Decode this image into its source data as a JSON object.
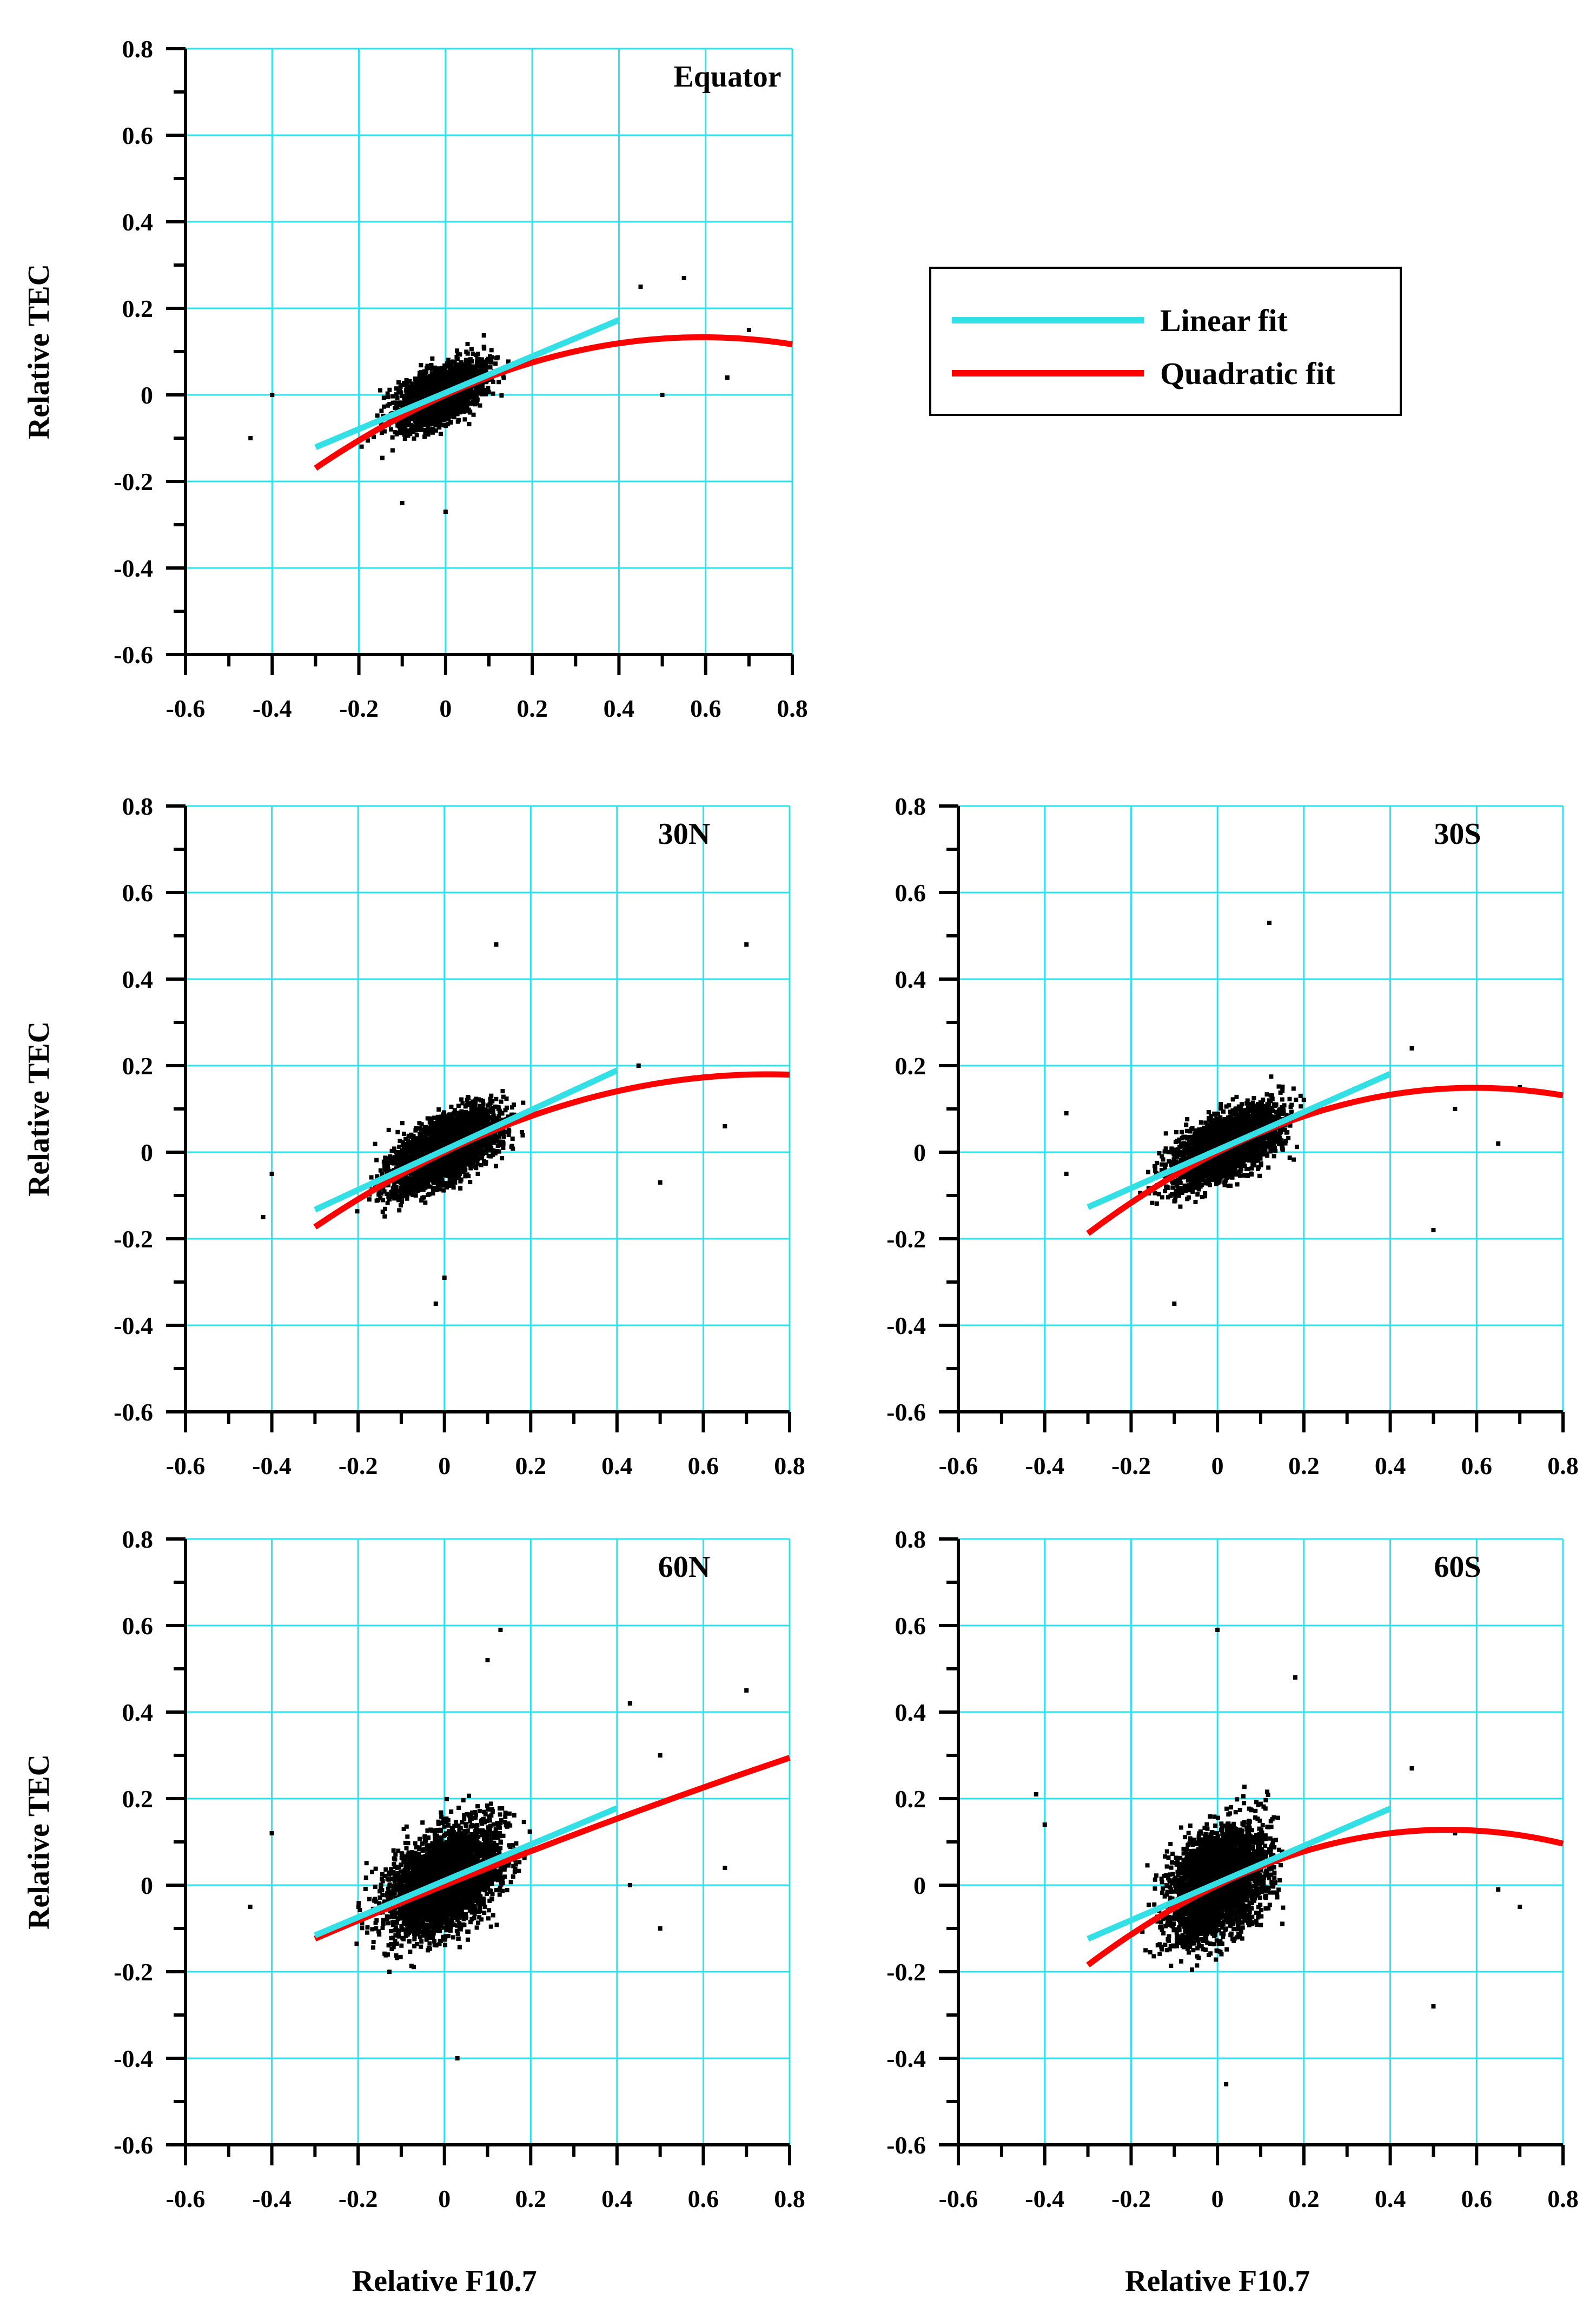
{
  "legend": {
    "items": [
      {
        "label": "Linear fit",
        "color": "#33e0e6"
      },
      {
        "label": "Quadratic fit",
        "color": "#ff0000"
      }
    ]
  },
  "colors": {
    "grid": "#29e3ef",
    "points": "#000000",
    "linear": "#33e0e6",
    "quadratic": "#ff0000"
  },
  "chart_data": [
    {
      "type": "scatter",
      "id": "equator",
      "label": "Equator",
      "xlabel": "",
      "ylabel": "Relative TEC",
      "xlim": [
        -0.6,
        0.8
      ],
      "ylim": [
        -0.6,
        0.8
      ],
      "xticks": [
        -0.6,
        -0.4,
        -0.2,
        0,
        0.2,
        0.4,
        0.6,
        0.8
      ],
      "yticks": [
        -0.6,
        -0.4,
        -0.2,
        0,
        0.2,
        0.4,
        0.6,
        0.8
      ],
      "grid": true,
      "linear_fit": {
        "slope": 0.42,
        "intercept": 0.005,
        "x_range": [
          -0.3,
          0.4
        ]
      },
      "quadratic_fit": {
        "a": -0.38,
        "b": 0.45,
        "c": 0.0,
        "x_range": [
          -0.3,
          0.8
        ]
      },
      "cloud": {
        "n": 2600,
        "x_mean": -0.01,
        "x_sd": 0.1,
        "y_sd": 0.06,
        "y_cap": 0.31
      },
      "outliers": [
        [
          -0.4,
          0.0
        ],
        [
          -0.45,
          -0.1
        ],
        [
          0.45,
          0.25
        ],
        [
          0.55,
          0.27
        ],
        [
          0.5,
          0.0
        ],
        [
          0.65,
          0.04
        ],
        [
          0.7,
          0.15
        ],
        [
          0.0,
          -0.27
        ],
        [
          -0.1,
          -0.25
        ]
      ]
    },
    {
      "type": "scatter",
      "id": "30n",
      "label": "30N",
      "xlabel": "",
      "ylabel": "Relative TEC",
      "xlim": [
        -0.6,
        0.8
      ],
      "ylim": [
        -0.6,
        0.8
      ],
      "xticks": [
        -0.6,
        -0.4,
        -0.2,
        0,
        0.2,
        0.4,
        0.6,
        0.8
      ],
      "yticks": [
        -0.6,
        -0.4,
        -0.2,
        0,
        0.2,
        0.4,
        0.6,
        0.8
      ],
      "grid": true,
      "linear_fit": {
        "slope": 0.46,
        "intercept": 0.005,
        "x_range": [
          -0.3,
          0.4
        ]
      },
      "quadratic_fit": {
        "a": -0.32,
        "b": 0.48,
        "c": 0.0,
        "x_range": [
          -0.3,
          0.8
        ]
      },
      "cloud": {
        "n": 3200,
        "x_mean": 0.0,
        "x_sd": 0.12,
        "y_sd": 0.07,
        "y_cap": 0.37
      },
      "outliers": [
        [
          0.12,
          0.48
        ],
        [
          0.7,
          0.48
        ],
        [
          0.65,
          0.06
        ],
        [
          0.5,
          -0.07
        ],
        [
          0.0,
          -0.29
        ],
        [
          -0.02,
          -0.35
        ],
        [
          -0.42,
          -0.15
        ],
        [
          -0.4,
          -0.05
        ],
        [
          0.45,
          0.2
        ]
      ]
    },
    {
      "type": "scatter",
      "id": "30s",
      "label": "30S",
      "xlabel": "",
      "ylabel": "",
      "xlim": [
        -0.6,
        0.8
      ],
      "ylim": [
        -0.6,
        0.8
      ],
      "xticks": [
        -0.6,
        -0.4,
        -0.2,
        0,
        0.2,
        0.4,
        0.6,
        0.8
      ],
      "yticks": [
        -0.6,
        -0.4,
        -0.2,
        0,
        0.2,
        0.4,
        0.6,
        0.8
      ],
      "grid": true,
      "linear_fit": {
        "slope": 0.44,
        "intercept": 0.005,
        "x_range": [
          -0.3,
          0.4
        ]
      },
      "quadratic_fit": {
        "a": -0.42,
        "b": 0.5,
        "c": 0.0,
        "x_range": [
          -0.3,
          0.8
        ]
      },
      "cloud": {
        "n": 3000,
        "x_mean": 0.02,
        "x_sd": 0.12,
        "y_sd": 0.07,
        "y_cap": 0.36
      },
      "outliers": [
        [
          0.12,
          0.53
        ],
        [
          0.5,
          -0.18
        ],
        [
          0.65,
          0.02
        ],
        [
          0.7,
          0.15
        ],
        [
          -0.35,
          -0.05
        ],
        [
          -0.35,
          0.09
        ],
        [
          -0.1,
          -0.35
        ],
        [
          0.45,
          0.24
        ],
        [
          0.55,
          0.1
        ]
      ]
    },
    {
      "type": "scatter",
      "id": "60n",
      "label": "60N",
      "xlabel": "Relative F10.7",
      "ylabel": "Relative TEC",
      "xlim": [
        -0.6,
        0.8
      ],
      "ylim": [
        -0.6,
        0.8
      ],
      "xticks": [
        -0.6,
        -0.4,
        -0.2,
        0,
        0.2,
        0.4,
        0.6,
        0.8
      ],
      "yticks": [
        -0.6,
        -0.4,
        -0.2,
        0,
        0.2,
        0.4,
        0.6,
        0.8
      ],
      "grid": true,
      "linear_fit": {
        "slope": 0.42,
        "intercept": 0.01,
        "x_range": [
          -0.3,
          0.4
        ]
      },
      "quadratic_fit": {
        "a": -0.04,
        "b": 0.4,
        "c": 0.0,
        "x_range": [
          -0.3,
          0.8
        ]
      },
      "cloud": {
        "n": 3600,
        "x_mean": 0.0,
        "x_sd": 0.13,
        "y_sd": 0.11,
        "y_cap": 0.53
      },
      "outliers": [
        [
          0.13,
          0.59
        ],
        [
          0.1,
          0.52
        ],
        [
          0.7,
          0.45
        ],
        [
          0.43,
          0.42
        ],
        [
          0.5,
          0.3
        ],
        [
          0.65,
          0.04
        ],
        [
          0.5,
          -0.1
        ],
        [
          -0.4,
          0.12
        ],
        [
          0.03,
          -0.4
        ],
        [
          -0.45,
          -0.05
        ],
        [
          0.43,
          0.0
        ]
      ]
    },
    {
      "type": "scatter",
      "id": "60s",
      "label": "60S",
      "xlabel": "Relative F10.7",
      "ylabel": "",
      "xlim": [
        -0.6,
        0.8
      ],
      "ylim": [
        -0.6,
        0.8
      ],
      "xticks": [
        -0.6,
        -0.4,
        -0.2,
        0,
        0.2,
        0.4,
        0.6,
        0.8
      ],
      "yticks": [
        -0.6,
        -0.4,
        -0.2,
        0,
        0.2,
        0.4,
        0.6,
        0.8
      ],
      "grid": true,
      "linear_fit": {
        "slope": 0.43,
        "intercept": 0.005,
        "x_range": [
          -0.3,
          0.4
        ]
      },
      "quadratic_fit": {
        "a": -0.45,
        "b": 0.48,
        "c": 0.0,
        "x_range": [
          -0.3,
          0.8
        ]
      },
      "cloud": {
        "n": 3400,
        "x_mean": 0.0,
        "x_sd": 0.11,
        "y_sd": 0.12,
        "y_cap": 0.5
      },
      "outliers": [
        [
          0.0,
          0.59
        ],
        [
          0.18,
          0.48
        ],
        [
          0.5,
          -0.28
        ],
        [
          0.65,
          -0.01
        ],
        [
          0.7,
          -0.05
        ],
        [
          -0.4,
          0.14
        ],
        [
          -0.42,
          0.21
        ],
        [
          0.02,
          -0.46
        ],
        [
          0.45,
          0.27
        ],
        [
          0.55,
          0.12
        ]
      ]
    }
  ]
}
